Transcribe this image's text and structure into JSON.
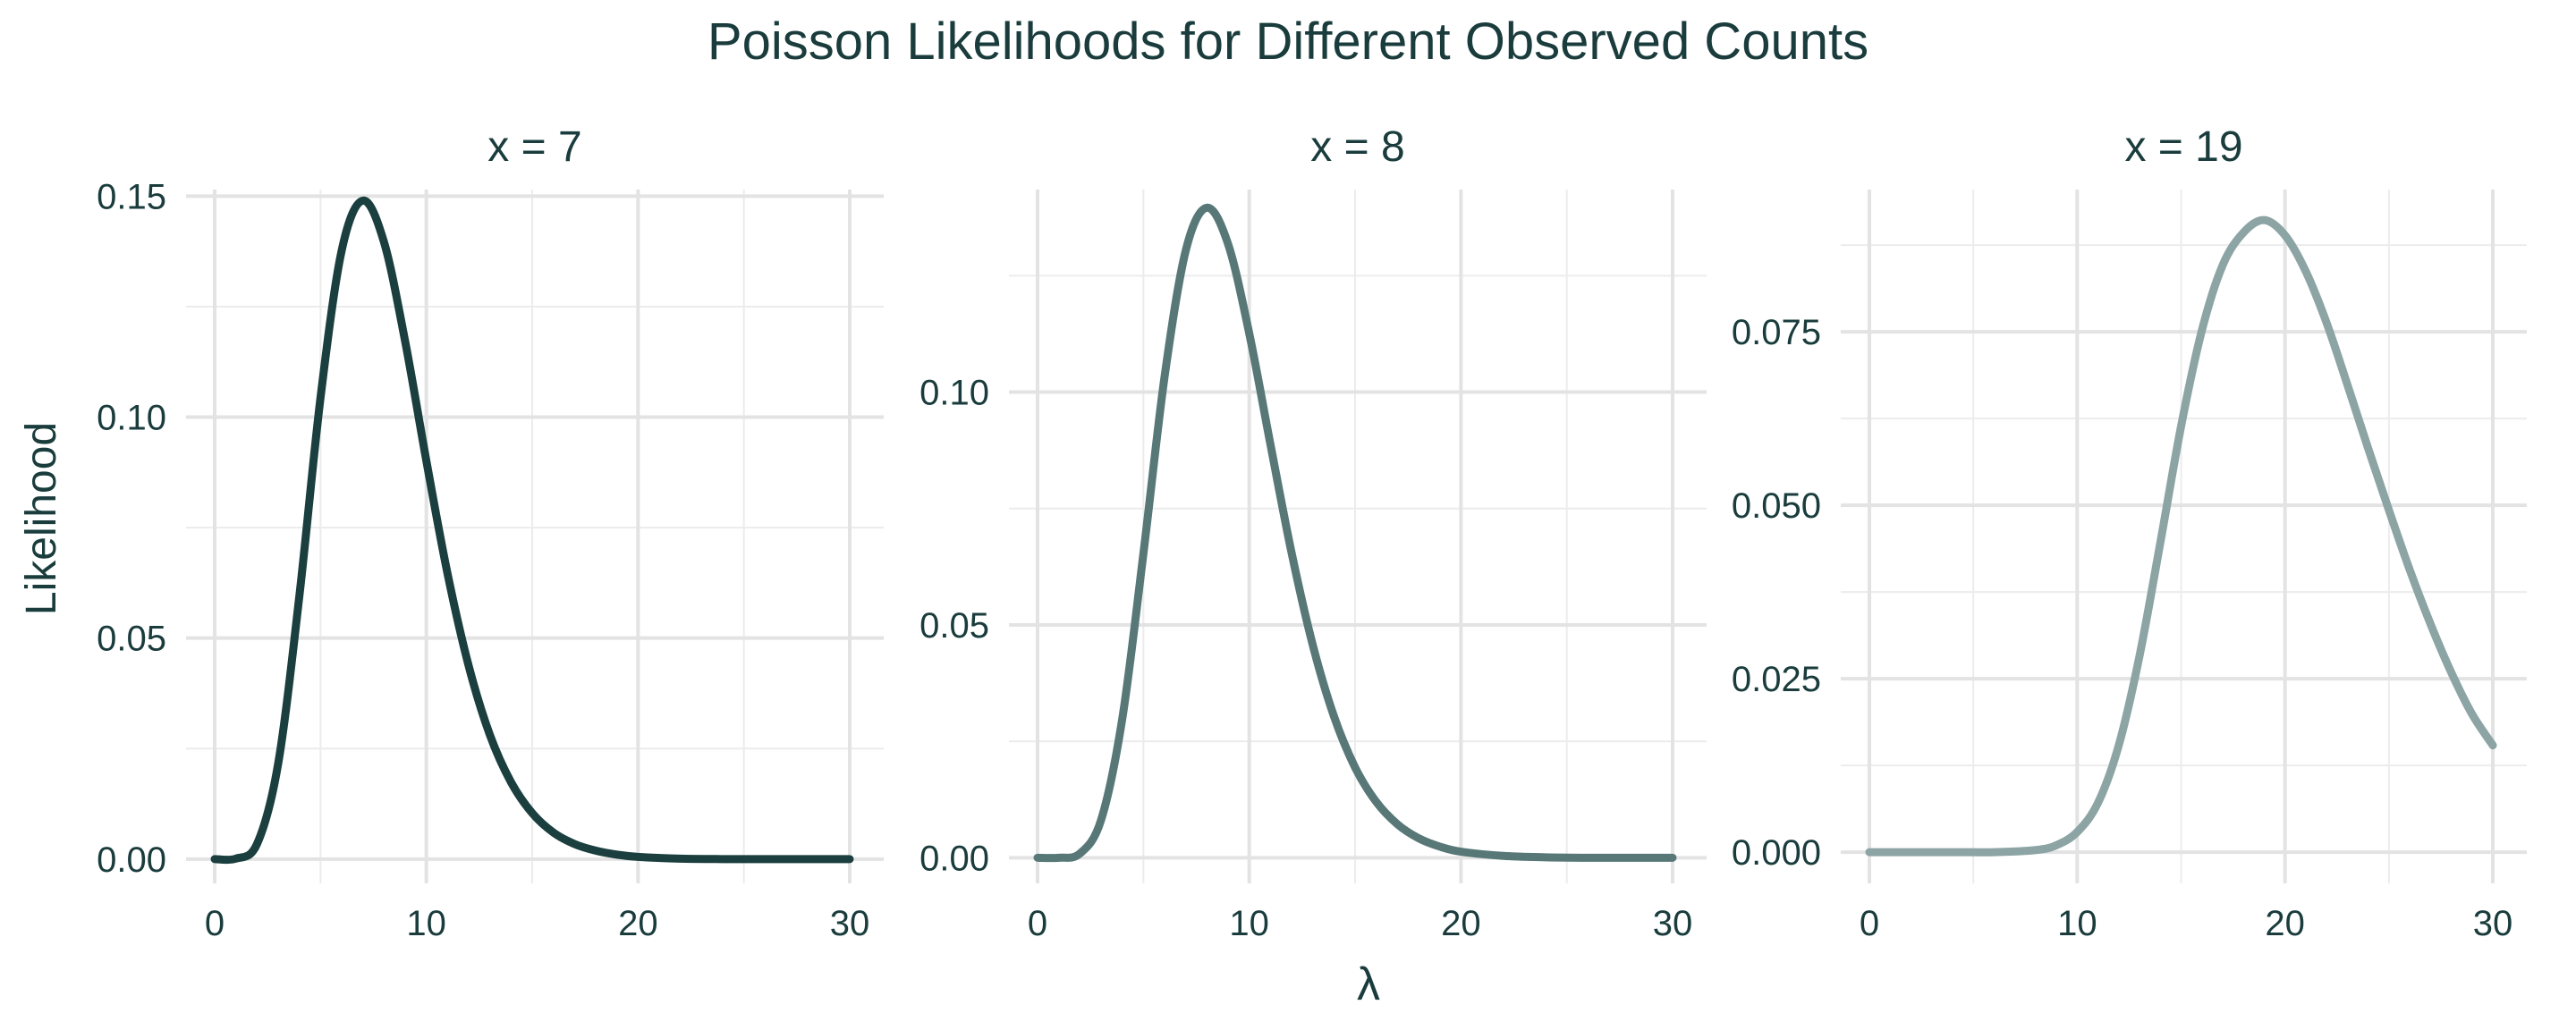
{
  "chart_data": {
    "type": "line",
    "title": "Poisson Likelihoods for Different Observed Counts",
    "xlabel": "λ",
    "ylabel": "Likelihood",
    "grid": true,
    "legend": "none",
    "x_range": [
      0,
      30
    ],
    "x_ticks": [
      0,
      10,
      20,
      30
    ],
    "panels": [
      {
        "label": "x = 7",
        "observed_count": 7,
        "color": "#1b3f3f",
        "ylim": [
          -0.0055,
          0.1515
        ],
        "y_ticks": [
          0,
          0.05,
          0.1,
          0.15
        ],
        "y_tick_labels": [
          "0.00",
          "0.05",
          "0.10",
          "0.15"
        ],
        "series": [
          {
            "x": [
              0,
              1,
              2,
              3,
              4,
              5,
              6,
              7,
              8,
              9,
              10,
              11,
              12,
              13,
              14,
              15,
              16,
              17,
              18,
              19,
              20,
              22,
              24,
              26,
              28,
              30
            ],
            "values": [
              0,
              0.0001,
              0.0034,
              0.0216,
              0.0595,
              0.1044,
              0.1377,
              0.149,
              0.1396,
              0.1171,
              0.0901,
              0.0646,
              0.0437,
              0.0281,
              0.0174,
              0.0104,
              0.006,
              0.0034,
              0.0019,
              0.001,
              0.0005,
              0.0001,
              0,
              0,
              0,
              0
            ]
          }
        ]
      },
      {
        "label": "x = 8",
        "observed_count": 8,
        "color": "#587878",
        "ylim": [
          -0.0055,
          0.1435
        ],
        "y_ticks": [
          0,
          0.05,
          0.1
        ],
        "y_tick_labels": [
          "0.00",
          "0.05",
          "0.10"
        ],
        "y_minor_ticks": [
          0.025,
          0.075,
          0.125
        ],
        "series": [
          {
            "x": [
              0,
              1,
              2,
              3,
              4,
              5,
              6,
              7,
              8,
              9,
              10,
              11,
              12,
              13,
              14,
              15,
              16,
              17,
              18,
              19,
              20,
              22,
              24,
              26,
              28,
              30
            ],
            "values": [
              0,
              0,
              0.0009,
              0.0081,
              0.0298,
              0.0653,
              0.1033,
              0.1304,
              0.1396,
              0.1318,
              0.1126,
              0.0888,
              0.0655,
              0.0457,
              0.0304,
              0.0194,
              0.012,
              0.0072,
              0.0042,
              0.0024,
              0.0013,
              0.0004,
              0.0001,
              0,
              0,
              0
            ]
          }
        ]
      },
      {
        "label": "x = 19",
        "observed_count": 19,
        "color": "#8ca4a4",
        "ylim": [
          -0.0045,
          0.0955
        ],
        "y_ticks": [
          0,
          0.025,
          0.05,
          0.075
        ],
        "y_tick_labels": [
          "0.000",
          "0.025",
          "0.050",
          "0.075"
        ],
        "y_minor_ticks": [
          0.0125,
          0.0375,
          0.0625,
          0.0875
        ],
        "series": [
          {
            "x": [
              0,
              2,
              4,
              6,
              8,
              9,
              10,
              11,
              12,
              13,
              14,
              15,
              16,
              17,
              18,
              19,
              20,
              21,
              22,
              23,
              24,
              25,
              26,
              27,
              28,
              29,
              30
            ],
            "values": [
              0,
              0,
              0,
              0,
              0.0003,
              0.001,
              0.0029,
              0.0071,
              0.0154,
              0.0283,
              0.0446,
              0.0614,
              0.0752,
              0.0846,
              0.0893,
              0.0911,
              0.0889,
              0.0837,
              0.0763,
              0.0674,
              0.0582,
              0.0493,
              0.0407,
              0.0329,
              0.0259,
              0.0199,
              0.0154
            ]
          }
        ]
      }
    ]
  }
}
